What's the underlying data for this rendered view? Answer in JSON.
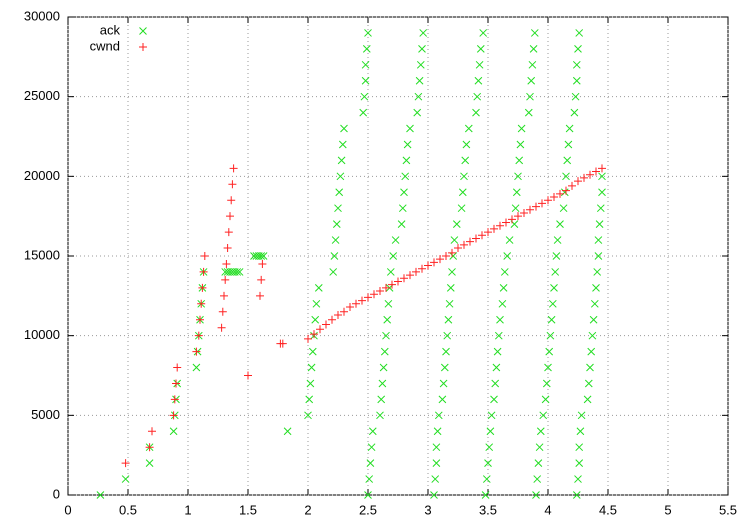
{
  "chart_data": {
    "type": "scatter",
    "xlim": [
      0,
      5.5
    ],
    "xticks": [
      0,
      0.5,
      1,
      1.5,
      2,
      2.5,
      3,
      3.5,
      4,
      4.5,
      5,
      5.5
    ],
    "ylim": [
      0,
      30000
    ],
    "yticks": [
      0,
      5000,
      10000,
      15000,
      20000,
      25000,
      30000
    ],
    "grid": true,
    "legend": "top-left",
    "series": [
      {
        "name": "ack",
        "color": "#22dd22",
        "marker": "x",
        "x": [
          0.27,
          0.48,
          0.68,
          0.68,
          0.88,
          0.89,
          0.9,
          0.91,
          1.07,
          1.08,
          1.09,
          1.1,
          1.11,
          1.12,
          1.13,
          1.31,
          1.33,
          1.35,
          1.37,
          1.39,
          1.41,
          1.43,
          1.55,
          1.57,
          1.59,
          1.61,
          1.63,
          1.83,
          2.0,
          2.01,
          2.02,
          2.03,
          2.04,
          2.05,
          2.06,
          2.07,
          2.09,
          2.21,
          2.22,
          2.23,
          2.24,
          2.25,
          2.26,
          2.27,
          2.28,
          2.29,
          2.3,
          2.46,
          2.47,
          2.48,
          2.48,
          2.49,
          2.5,
          2.5,
          2.51,
          2.52,
          2.53,
          2.54,
          2.6,
          2.61,
          2.62,
          2.63,
          2.64,
          2.65,
          2.66,
          2.67,
          2.68,
          2.69,
          2.71,
          2.73,
          2.78,
          2.79,
          2.8,
          2.81,
          2.82,
          2.83,
          2.85,
          2.91,
          2.92,
          2.93,
          2.94,
          2.95,
          2.96,
          3.05,
          3.06,
          3.07,
          3.07,
          3.08,
          3.09,
          3.12,
          3.13,
          3.14,
          3.15,
          3.16,
          3.17,
          3.18,
          3.19,
          3.2,
          3.21,
          3.22,
          3.24,
          3.28,
          3.29,
          3.3,
          3.31,
          3.32,
          3.34,
          3.4,
          3.41,
          3.42,
          3.43,
          3.44,
          3.46,
          3.48,
          3.49,
          3.5,
          3.51,
          3.52,
          3.53,
          3.55,
          3.56,
          3.57,
          3.58,
          3.59,
          3.6,
          3.62,
          3.63,
          3.64,
          3.66,
          3.68,
          3.72,
          3.73,
          3.74,
          3.75,
          3.76,
          3.77,
          3.78,
          3.84,
          3.85,
          3.86,
          3.87,
          3.88,
          3.89,
          3.9,
          3.91,
          3.92,
          3.93,
          3.94,
          3.96,
          3.98,
          3.99,
          4.0,
          4.01,
          4.02,
          4.03,
          4.04,
          4.05,
          4.06,
          4.07,
          4.08,
          4.1,
          4.13,
          4.14,
          4.15,
          4.16,
          4.17,
          4.18,
          4.22,
          4.23,
          4.24,
          4.24,
          4.25,
          4.26,
          4.24,
          4.25,
          4.26,
          4.26,
          4.27,
          4.28,
          4.33,
          4.34,
          4.35,
          4.36,
          4.37,
          4.38,
          4.39,
          4.4,
          4.41,
          4.42,
          4.42,
          4.43,
          4.44,
          4.45,
          4.45
        ],
        "values": [
          0,
          1000,
          2000,
          3000,
          4000,
          5000,
          6000,
          7000,
          8000,
          9000,
          10000,
          11000,
          12000,
          13000,
          14000,
          14000,
          14000,
          14000,
          14000,
          14000,
          14000,
          14000,
          15000,
          15000,
          15000,
          15000,
          15000,
          4000,
          5000,
          6000,
          7000,
          8000,
          9000,
          10000,
          11000,
          12000,
          13000,
          14000,
          15000,
          16000,
          17000,
          18000,
          19000,
          20000,
          21000,
          22000,
          23000,
          24000,
          25000,
          26000,
          27000,
          28000,
          29000,
          0,
          1000,
          2000,
          3000,
          4000,
          5000,
          6000,
          7000,
          8000,
          9000,
          10000,
          11000,
          12000,
          13000,
          14000,
          15000,
          16000,
          17000,
          18000,
          19000,
          20000,
          21000,
          22000,
          23000,
          24000,
          25000,
          26000,
          27000,
          28000,
          29000,
          0,
          1000,
          2000,
          3000,
          4000,
          5000,
          6000,
          7000,
          8000,
          9000,
          10000,
          11000,
          12000,
          13000,
          14000,
          15000,
          16000,
          17000,
          18000,
          19000,
          20000,
          21000,
          22000,
          23000,
          24000,
          25000,
          26000,
          27000,
          28000,
          29000,
          0,
          1000,
          2000,
          3000,
          4000,
          5000,
          6000,
          7000,
          8000,
          9000,
          10000,
          11000,
          12000,
          13000,
          14000,
          15000,
          16000,
          17000,
          18000,
          19000,
          20000,
          21000,
          22000,
          23000,
          24000,
          25000,
          26000,
          27000,
          28000,
          29000,
          0,
          1000,
          2000,
          3000,
          4000,
          5000,
          6000,
          7000,
          8000,
          9000,
          10000,
          11000,
          12000,
          13000,
          14000,
          15000,
          16000,
          17000,
          18000,
          19000,
          20000,
          21000,
          22000,
          23000,
          24000,
          25000,
          26000,
          27000,
          28000,
          29000,
          0,
          1000,
          2000,
          3000,
          4000,
          5000,
          6000,
          7000,
          8000,
          9000,
          10000,
          11000,
          12000,
          13000,
          14000,
          15000,
          16000,
          17000,
          18000,
          19000,
          20000
        ]
      },
      {
        "name": "cwnd",
        "color": "#ff2222",
        "marker": "+",
        "x": [
          0.48,
          0.68,
          0.7,
          0.88,
          0.89,
          0.9,
          0.91,
          1.07,
          1.09,
          1.1,
          1.11,
          1.12,
          1.13,
          1.14,
          1.28,
          1.29,
          1.3,
          1.31,
          1.32,
          1.33,
          1.34,
          1.35,
          1.36,
          1.37,
          1.38,
          1.5,
          1.6,
          1.61,
          1.62,
          1.77,
          1.79,
          2.0,
          2.05,
          2.1,
          2.15,
          2.2,
          2.25,
          2.3,
          2.35,
          2.4,
          2.45,
          2.5,
          2.55,
          2.6,
          2.65,
          2.7,
          2.75,
          2.8,
          2.85,
          2.9,
          2.95,
          3.0,
          3.05,
          3.1,
          3.15,
          3.2,
          3.25,
          3.3,
          3.35,
          3.4,
          3.45,
          3.5,
          3.55,
          3.6,
          3.65,
          3.7,
          3.75,
          3.8,
          3.85,
          3.9,
          3.95,
          4.0,
          4.05,
          4.1,
          4.15,
          4.2,
          4.25,
          4.3,
          4.35,
          4.4,
          4.45
        ],
        "values": [
          2000,
          3000,
          4000,
          5000,
          6000,
          7000,
          8000,
          9000,
          10000,
          11000,
          12000,
          13000,
          14000,
          15000,
          10500,
          11500,
          12500,
          13500,
          14500,
          15500,
          16500,
          17500,
          18500,
          19500,
          20500,
          7500,
          12500,
          13500,
          14500,
          9500,
          9500,
          9800,
          10100,
          10400,
          10700,
          11000,
          11300,
          11500,
          11800,
          12000,
          12200,
          12400,
          12600,
          12800,
          13000,
          13200,
          13400,
          13600,
          13800,
          14000,
          14200,
          14400,
          14600,
          14800,
          15000,
          15200,
          15500,
          15700,
          15900,
          16100,
          16300,
          16500,
          16700,
          16900,
          17100,
          17300,
          17500,
          17700,
          17900,
          18100,
          18300,
          18500,
          18700,
          18900,
          19100,
          19400,
          19700,
          19900,
          20100,
          20300,
          20500
        ]
      }
    ]
  }
}
